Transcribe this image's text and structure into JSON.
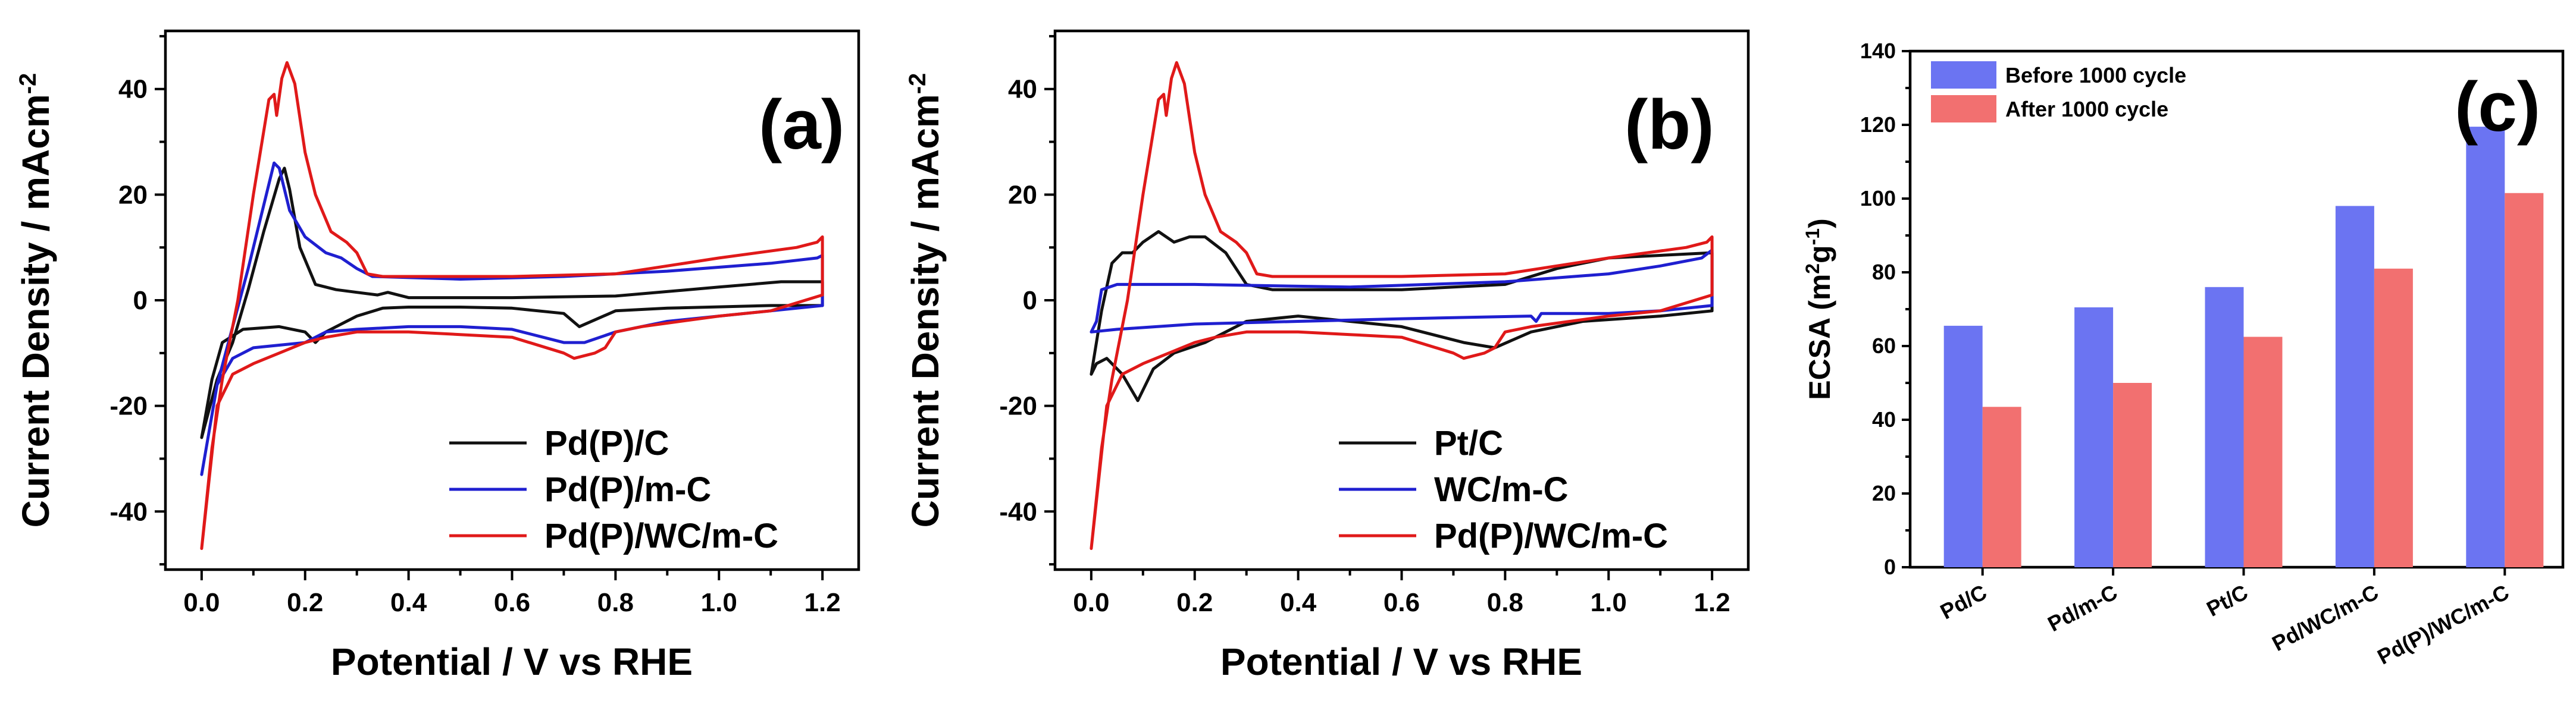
{
  "colors": {
    "black": "#111111",
    "blue": "#1f1fd0",
    "red": "#e01919",
    "bar_blue": "#6b74f2",
    "bar_red": "#f27070"
  },
  "chart_data": [
    {
      "type": "line",
      "panel": "(a)",
      "xlabel": "Potential / V vs RHE",
      "ylabel": "Current Density / mAcm",
      "ylabel_sup": "-2",
      "xlim": [
        -0.07,
        1.27
      ],
      "ylim": [
        -51,
        51
      ],
      "xticks": [
        "0.0",
        "0.2",
        "0.4",
        "0.6",
        "0.8",
        "1.0",
        "1.2"
      ],
      "yticks": [
        "40",
        "20",
        "0",
        "-20",
        "-40"
      ],
      "legend_position": "bottom-right",
      "series": [
        {
          "name": "Pd(P)/C",
          "color": "black",
          "points": [
            [
              0.0,
              -26
            ],
            [
              0.03,
              -15
            ],
            [
              0.06,
              -8
            ],
            [
              0.09,
              2
            ],
            [
              0.12,
              13
            ],
            [
              0.15,
              23
            ],
            [
              0.16,
              25
            ],
            [
              0.17,
              21
            ],
            [
              0.19,
              10
            ],
            [
              0.22,
              3
            ],
            [
              0.26,
              2
            ],
            [
              0.3,
              1.5
            ],
            [
              0.34,
              1
            ],
            [
              0.36,
              1.5
            ],
            [
              0.4,
              0.5
            ],
            [
              0.6,
              0.5
            ],
            [
              0.8,
              0.8
            ],
            [
              1.0,
              2.5
            ],
            [
              1.12,
              3.5
            ],
            [
              1.19,
              3.5
            ],
            [
              1.2,
              3.5
            ],
            [
              1.2,
              -1
            ],
            [
              1.1,
              -1
            ],
            [
              0.9,
              -1.5
            ],
            [
              0.8,
              -2
            ],
            [
              0.73,
              -5
            ],
            [
              0.7,
              -2.5
            ],
            [
              0.6,
              -1.5
            ],
            [
              0.5,
              -1.3
            ],
            [
              0.4,
              -1.3
            ],
            [
              0.35,
              -1.5
            ],
            [
              0.3,
              -3
            ],
            [
              0.28,
              -4
            ],
            [
              0.24,
              -6
            ],
            [
              0.22,
              -8
            ],
            [
              0.2,
              -6
            ],
            [
              0.15,
              -5
            ],
            [
              0.08,
              -5.5
            ],
            [
              0.04,
              -8
            ],
            [
              0.02,
              -15
            ],
            [
              0.0,
              -26
            ]
          ]
        },
        {
          "name": "Pd(P)/m-C",
          "color": "blue",
          "points": [
            [
              0.0,
              -33
            ],
            [
              0.03,
              -16
            ],
            [
              0.06,
              -5
            ],
            [
              0.09,
              6
            ],
            [
              0.12,
              18
            ],
            [
              0.14,
              26
            ],
            [
              0.15,
              25
            ],
            [
              0.17,
              17
            ],
            [
              0.2,
              12
            ],
            [
              0.24,
              9
            ],
            [
              0.27,
              8
            ],
            [
              0.3,
              6
            ],
            [
              0.33,
              4.5
            ],
            [
              0.5,
              4
            ],
            [
              0.7,
              4.5
            ],
            [
              0.9,
              5.5
            ],
            [
              1.1,
              7
            ],
            [
              1.19,
              8
            ],
            [
              1.2,
              8.5
            ],
            [
              1.2,
              -1
            ],
            [
              1.1,
              -2
            ],
            [
              0.9,
              -4
            ],
            [
              0.8,
              -6
            ],
            [
              0.74,
              -8
            ],
            [
              0.7,
              -8
            ],
            [
              0.6,
              -5.5
            ],
            [
              0.5,
              -5
            ],
            [
              0.4,
              -5
            ],
            [
              0.3,
              -5.5
            ],
            [
              0.24,
              -6
            ],
            [
              0.2,
              -8
            ],
            [
              0.15,
              -8.5
            ],
            [
              0.1,
              -9
            ],
            [
              0.06,
              -11
            ],
            [
              0.03,
              -16
            ],
            [
              0.0,
              -33
            ]
          ]
        },
        {
          "name": "Pd(P)/WC/m-C",
          "color": "red",
          "points": [
            [
              0.0,
              -47
            ],
            [
              0.02,
              -28
            ],
            [
              0.04,
              -15
            ],
            [
              0.07,
              0
            ],
            [
              0.1,
              20
            ],
            [
              0.13,
              38
            ],
            [
              0.14,
              39
            ],
            [
              0.145,
              35
            ],
            [
              0.155,
              42
            ],
            [
              0.165,
              45
            ],
            [
              0.18,
              41
            ],
            [
              0.2,
              28
            ],
            [
              0.22,
              20
            ],
            [
              0.25,
              13
            ],
            [
              0.28,
              11
            ],
            [
              0.3,
              9
            ],
            [
              0.32,
              5
            ],
            [
              0.35,
              4.5
            ],
            [
              0.6,
              4.5
            ],
            [
              0.8,
              5
            ],
            [
              1.0,
              8
            ],
            [
              1.15,
              10
            ],
            [
              1.19,
              11
            ],
            [
              1.2,
              12
            ],
            [
              1.2,
              1
            ],
            [
              1.1,
              -2
            ],
            [
              1.0,
              -3
            ],
            [
              0.85,
              -5
            ],
            [
              0.8,
              -6
            ],
            [
              0.78,
              -9
            ],
            [
              0.76,
              -10
            ],
            [
              0.72,
              -11
            ],
            [
              0.7,
              -10
            ],
            [
              0.6,
              -7
            ],
            [
              0.5,
              -6.5
            ],
            [
              0.4,
              -6
            ],
            [
              0.3,
              -6
            ],
            [
              0.24,
              -7
            ],
            [
              0.2,
              -8
            ],
            [
              0.15,
              -10
            ],
            [
              0.1,
              -12
            ],
            [
              0.06,
              -14
            ],
            [
              0.03,
              -20
            ],
            [
              0.0,
              -47
            ]
          ]
        }
      ]
    },
    {
      "type": "line",
      "panel": "(b)",
      "xlabel": "Potential / V vs RHE",
      "ylabel": "Current Density / mAcm",
      "ylabel_sup": "-2",
      "xlim": [
        -0.07,
        1.27
      ],
      "ylim": [
        -51,
        51
      ],
      "xticks": [
        "0.0",
        "0.2",
        "0.4",
        "0.6",
        "0.8",
        "1.0",
        "1.2"
      ],
      "yticks": [
        "40",
        "20",
        "0",
        "-20",
        "-40"
      ],
      "legend_position": "bottom-right",
      "series": [
        {
          "name": "Pt/C",
          "color": "black",
          "points": [
            [
              0.0,
              -14
            ],
            [
              0.02,
              -2
            ],
            [
              0.04,
              7
            ],
            [
              0.06,
              9
            ],
            [
              0.08,
              9
            ],
            [
              0.1,
              11
            ],
            [
              0.13,
              13
            ],
            [
              0.16,
              11
            ],
            [
              0.19,
              12
            ],
            [
              0.22,
              12
            ],
            [
              0.26,
              9
            ],
            [
              0.3,
              3
            ],
            [
              0.35,
              2
            ],
            [
              0.6,
              2
            ],
            [
              0.8,
              3
            ],
            [
              0.9,
              6
            ],
            [
              1.0,
              8
            ],
            [
              1.1,
              8.5
            ],
            [
              1.2,
              9
            ],
            [
              1.2,
              -2
            ],
            [
              1.1,
              -3
            ],
            [
              0.95,
              -4
            ],
            [
              0.85,
              -6
            ],
            [
              0.78,
              -9
            ],
            [
              0.72,
              -8
            ],
            [
              0.6,
              -5
            ],
            [
              0.5,
              -4
            ],
            [
              0.4,
              -3
            ],
            [
              0.3,
              -4
            ],
            [
              0.22,
              -8
            ],
            [
              0.16,
              -10
            ],
            [
              0.12,
              -13
            ],
            [
              0.09,
              -19
            ],
            [
              0.06,
              -14
            ],
            [
              0.03,
              -11
            ],
            [
              0.01,
              -12
            ],
            [
              0.0,
              -14
            ]
          ]
        },
        {
          "name": "WC/m-C",
          "color": "blue",
          "points": [
            [
              0.0,
              -6
            ],
            [
              0.01,
              -4
            ],
            [
              0.02,
              2
            ],
            [
              0.05,
              3
            ],
            [
              0.2,
              3
            ],
            [
              0.5,
              2.5
            ],
            [
              0.8,
              3.5
            ],
            [
              1.0,
              5
            ],
            [
              1.1,
              6.5
            ],
            [
              1.18,
              8
            ],
            [
              1.2,
              9.5
            ],
            [
              1.2,
              -1
            ],
            [
              1.1,
              -2
            ],
            [
              1.0,
              -2.5
            ],
            [
              0.87,
              -2.5
            ],
            [
              0.86,
              -4
            ],
            [
              0.85,
              -3
            ],
            [
              0.6,
              -3.5
            ],
            [
              0.4,
              -4
            ],
            [
              0.2,
              -4.5
            ],
            [
              0.05,
              -5.5
            ],
            [
              0.0,
              -6
            ]
          ]
        },
        {
          "name": "Pd(P)/WC/m-C",
          "color": "red",
          "points": [
            [
              0.0,
              -47
            ],
            [
              0.02,
              -28
            ],
            [
              0.04,
              -15
            ],
            [
              0.07,
              0
            ],
            [
              0.1,
              20
            ],
            [
              0.13,
              38
            ],
            [
              0.14,
              39
            ],
            [
              0.145,
              35
            ],
            [
              0.155,
              42
            ],
            [
              0.165,
              45
            ],
            [
              0.18,
              41
            ],
            [
              0.2,
              28
            ],
            [
              0.22,
              20
            ],
            [
              0.25,
              13
            ],
            [
              0.28,
              11
            ],
            [
              0.3,
              9
            ],
            [
              0.32,
              5
            ],
            [
              0.35,
              4.5
            ],
            [
              0.6,
              4.5
            ],
            [
              0.8,
              5
            ],
            [
              1.0,
              8
            ],
            [
              1.15,
              10
            ],
            [
              1.19,
              11
            ],
            [
              1.2,
              12
            ],
            [
              1.2,
              1
            ],
            [
              1.1,
              -2
            ],
            [
              1.0,
              -3
            ],
            [
              0.85,
              -5
            ],
            [
              0.8,
              -6
            ],
            [
              0.78,
              -9
            ],
            [
              0.76,
              -10
            ],
            [
              0.72,
              -11
            ],
            [
              0.7,
              -10
            ],
            [
              0.6,
              -7
            ],
            [
              0.5,
              -6.5
            ],
            [
              0.4,
              -6
            ],
            [
              0.3,
              -6
            ],
            [
              0.24,
              -7
            ],
            [
              0.2,
              -8
            ],
            [
              0.15,
              -10
            ],
            [
              0.1,
              -12
            ],
            [
              0.06,
              -14
            ],
            [
              0.03,
              -20
            ],
            [
              0.0,
              -47
            ]
          ]
        }
      ]
    },
    {
      "type": "bar",
      "panel": "(c)",
      "ylabel": "ECSA (m",
      "ylabel_sup1": "2",
      "ylabel_mid": "g",
      "ylabel_sup2": "-1",
      "ylabel_end": ")",
      "ylim": [
        0,
        140
      ],
      "yticks": [
        "0",
        "20",
        "40",
        "60",
        "80",
        "100",
        "120",
        "140"
      ],
      "categories": [
        "Pd/C",
        "Pd/m-C",
        "Pt/C",
        "Pd/WC/m-C",
        "Pd(P)/WC/m-C"
      ],
      "legend_position": "top-left",
      "series": [
        {
          "name": "Before 1000 cycle",
          "color": "bar_blue",
          "values": [
            65.5,
            70.5,
            76,
            98,
            119.5
          ]
        },
        {
          "name": "After 1000 cycle",
          "color": "bar_red",
          "values": [
            43.5,
            50,
            62.5,
            81,
            101.5
          ]
        }
      ]
    }
  ]
}
